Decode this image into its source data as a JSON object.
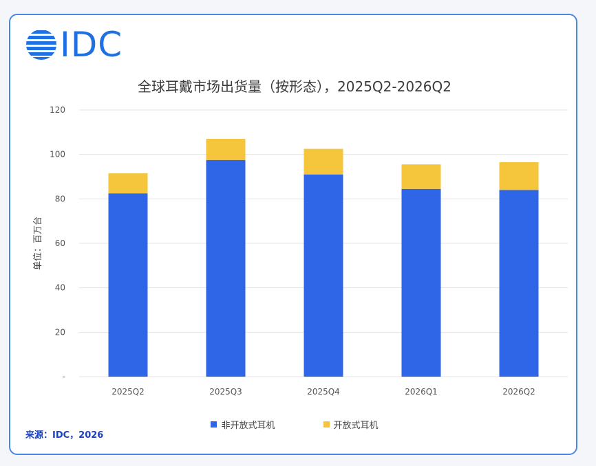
{
  "logo": {
    "text": "IDC"
  },
  "colors": {
    "non_open": "#2f66e8",
    "open": "#f5c53b",
    "grid": "#e3e3e3",
    "border": "#4a86e8",
    "logo": "#1f6fe5"
  },
  "source": "来源：IDC，2026",
  "chart_data": {
    "type": "bar",
    "stacked": true,
    "title": "全球耳戴市场出货量（按形态），2025Q2-2026Q2",
    "ylabel": "单位：百万台",
    "xlabel": "",
    "ylim": [
      0,
      120
    ],
    "yticks": [
      "-",
      "20",
      "40",
      "60",
      "80",
      "100",
      "120"
    ],
    "ytick_values": [
      0,
      20,
      40,
      60,
      80,
      100,
      120
    ],
    "grid": true,
    "legend_position": "bottom",
    "categories": [
      "2025Q2",
      "2025Q3",
      "2025Q4",
      "2026Q1",
      "2026Q2"
    ],
    "series": [
      {
        "name": "非开放式耳机",
        "values": [
          82.5,
          97.5,
          91,
          84.5,
          84
        ]
      },
      {
        "name": "开放式耳机",
        "values": [
          9,
          9.5,
          11.5,
          11,
          12.5
        ]
      }
    ]
  }
}
